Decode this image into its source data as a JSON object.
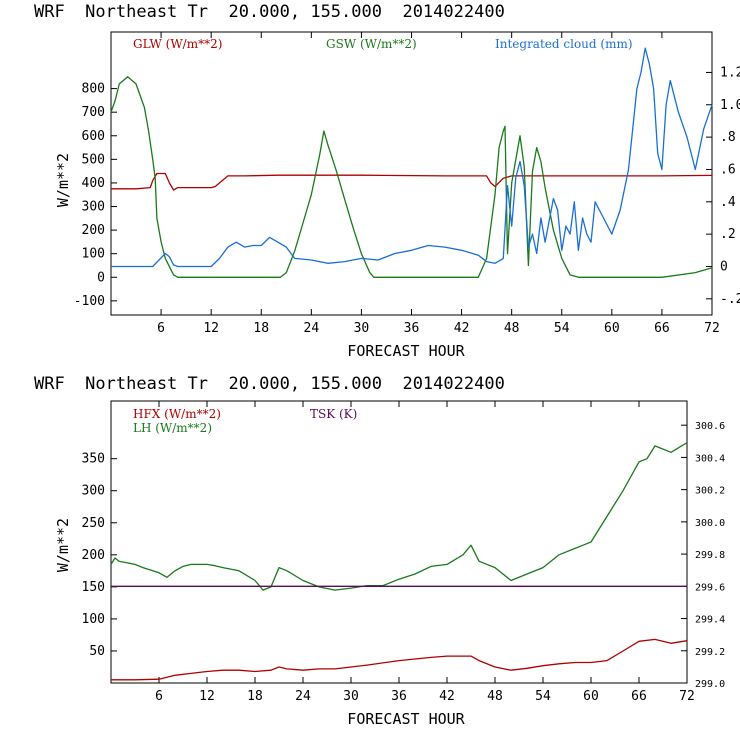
{
  "chart_data": [
    {
      "type": "line",
      "title": "WRF  Northeast Tr  20.000, 155.000  2014022400",
      "xlabel": "FORECAST HOUR",
      "ylabel": "W/m**2",
      "xlim": [
        0,
        72
      ],
      "ylim": [
        -160,
        1040
      ],
      "y2lim": [
        -0.3,
        1.45
      ],
      "xticks": [
        "6",
        "12",
        "18",
        "24",
        "30",
        "36",
        "42",
        "48",
        "54",
        "60",
        "66",
        "72"
      ],
      "yticks": [
        "800",
        "700",
        "600",
        "500",
        "400",
        "300",
        "200",
        "100",
        "0",
        "-100"
      ],
      "y2ticks": [
        "1.2",
        "1.0",
        ".8",
        ".6",
        ".4",
        ".2",
        "0",
        "-.2"
      ],
      "grid": false,
      "legend_position": "top",
      "series": [
        {
          "name": "GLW (W/m**2)",
          "color": "#b00000",
          "axis": "left",
          "x": [
            0,
            3,
            4.7,
            5,
            5.5,
            6.5,
            7,
            7.5,
            8,
            12,
            12.5,
            13,
            14,
            16,
            20,
            30,
            40,
            45,
            45.5,
            46,
            47,
            48,
            52,
            60,
            66,
            72
          ],
          "y": [
            375,
            375,
            380,
            410,
            440,
            440,
            400,
            370,
            380,
            380,
            385,
            400,
            430,
            430,
            433,
            433,
            430,
            430,
            400,
            385,
            420,
            430,
            430,
            430,
            430,
            432
          ]
        },
        {
          "name": "GSW (W/m**2)",
          "color": "#1a7a1a",
          "axis": "left",
          "x": [
            0,
            0.5,
            1,
            2,
            3,
            4,
            4.5,
            5,
            5.3,
            5.5,
            6,
            6.5,
            7.5,
            8,
            20.3,
            21,
            22,
            23,
            24,
            25,
            25.5,
            26,
            27,
            28,
            29,
            30,
            31,
            31.5,
            44,
            45,
            46,
            46.5,
            47,
            47.2,
            47.5,
            48,
            49,
            49.5,
            50,
            50.5,
            51,
            51.5,
            52,
            53,
            54,
            55,
            56,
            66,
            70,
            72
          ],
          "y": [
            700,
            750,
            820,
            850,
            820,
            720,
            620,
            500,
            420,
            250,
            150,
            80,
            10,
            0,
            0,
            20,
            110,
            230,
            350,
            520,
            620,
            560,
            450,
            330,
            210,
            100,
            20,
            0,
            0,
            80,
            350,
            550,
            620,
            640,
            100,
            400,
            600,
            470,
            50,
            450,
            550,
            490,
            380,
            200,
            80,
            10,
            0,
            0,
            20,
            40
          ]
        },
        {
          "name": "Integrated cloud (mm)",
          "color": "#1a6fd4",
          "axis": "right",
          "x": [
            0,
            5,
            6.5,
            7,
            7.5,
            8,
            12,
            13,
            14,
            15,
            16,
            17,
            18,
            19,
            20,
            21,
            22,
            24,
            26,
            28,
            30,
            32,
            34,
            36,
            38,
            40,
            42,
            44,
            45,
            46,
            47,
            47.5,
            48,
            48.5,
            49,
            49.5,
            50,
            50.5,
            51,
            51.5,
            52,
            53,
            53.5,
            54,
            54.5,
            55,
            55.5,
            56,
            56.5,
            57,
            57.5,
            58,
            59,
            60,
            61,
            62,
            63,
            63.5,
            64,
            64.5,
            65,
            65.5,
            66,
            66.5,
            67,
            67.5,
            68,
            69,
            70,
            71,
            72
          ],
          "y": [
            0,
            0,
            0.08,
            0.06,
            0.01,
            0,
            0,
            0.05,
            0.12,
            0.15,
            0.12,
            0.13,
            0.13,
            0.18,
            0.15,
            0.12,
            0.05,
            0.04,
            0.02,
            0.03,
            0.05,
            0.04,
            0.08,
            0.1,
            0.13,
            0.12,
            0.1,
            0.07,
            0.03,
            0.02,
            0.05,
            0.5,
            0.25,
            0.55,
            0.65,
            0.5,
            0.12,
            0.2,
            0.08,
            0.3,
            0.15,
            0.42,
            0.35,
            0.1,
            0.25,
            0.2,
            0.4,
            0.1,
            0.3,
            0.2,
            0.15,
            0.4,
            0.3,
            0.2,
            0.35,
            0.6,
            1.1,
            1.2,
            1.35,
            1.25,
            1.1,
            0.7,
            0.6,
            1.0,
            1.15,
            1.05,
            0.95,
            0.8,
            0.6,
            0.85,
            1.0
          ]
        }
      ]
    },
    {
      "type": "line",
      "title": "WRF  Northeast Tr  20.000, 155.000  2014022400",
      "xlabel": "FORECAST HOUR",
      "ylabel": "W/m**2",
      "xlim": [
        0,
        72
      ],
      "ylim": [
        0,
        440
      ],
      "y2lim": [
        299.0,
        300.75
      ],
      "xticks": [
        "6",
        "12",
        "18",
        "24",
        "30",
        "36",
        "42",
        "48",
        "54",
        "60",
        "66",
        "72"
      ],
      "yticks": [
        "350",
        "300",
        "250",
        "200",
        "150",
        "100",
        "50"
      ],
      "y2ticks": [
        "300.6",
        "300.4",
        "300.2",
        "300.0",
        "299.8",
        "299.6",
        "299.4",
        "299.2",
        "299.0"
      ],
      "grid": false,
      "legend_position": "top-left",
      "series": [
        {
          "name": "HFX (W/m**2)",
          "color": "#b00000",
          "axis": "left",
          "x": [
            0,
            3,
            6,
            8,
            10,
            12,
            14,
            16,
            18,
            20,
            21,
            22,
            24,
            26,
            28,
            30,
            32,
            36,
            40,
            42,
            44,
            45,
            46,
            48,
            50,
            52,
            54,
            56,
            58,
            60,
            62,
            64,
            66,
            68,
            70,
            72
          ],
          "y": [
            5,
            5,
            6,
            12,
            15,
            18,
            20,
            20,
            18,
            20,
            25,
            22,
            20,
            22,
            22,
            25,
            28,
            35,
            40,
            42,
            42,
            42,
            35,
            25,
            20,
            23,
            27,
            30,
            32,
            32,
            35,
            50,
            65,
            68,
            62,
            66
          ]
        },
        {
          "name": "LH  (W/m**2)",
          "color": "#1a7a1a",
          "axis": "left",
          "x": [
            0,
            0.5,
            1,
            3,
            4,
            6,
            7,
            8,
            9,
            10,
            12,
            13,
            14,
            16,
            18,
            19,
            20,
            21,
            22,
            24,
            26,
            28,
            30,
            32,
            34,
            36,
            38,
            40,
            42,
            44,
            45,
            46,
            48,
            50,
            52,
            54,
            56,
            58,
            59,
            60,
            62,
            64,
            66,
            67,
            68,
            70,
            72
          ],
          "y": [
            185,
            195,
            190,
            185,
            180,
            172,
            165,
            175,
            182,
            185,
            185,
            183,
            180,
            175,
            160,
            145,
            150,
            180,
            175,
            160,
            150,
            145,
            148,
            152,
            152,
            162,
            170,
            182,
            185,
            200,
            215,
            190,
            180,
            160,
            170,
            180,
            200,
            210,
            215,
            220,
            260,
            300,
            345,
            350,
            370,
            360,
            375
          ]
        },
        {
          "name": "TSK (K)",
          "color": "#5a0a5a",
          "axis": "right",
          "x": [
            0,
            72
          ],
          "y": [
            299.6,
            299.6
          ]
        }
      ]
    }
  ]
}
